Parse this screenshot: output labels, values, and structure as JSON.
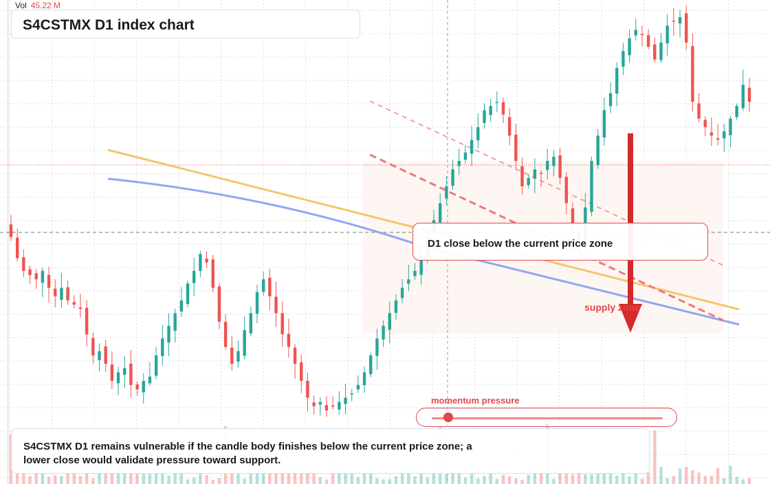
{
  "header": {
    "vol_label": "Vol",
    "vol_value": "45.22 M"
  },
  "title": "S4CSTMX D1 index chart",
  "callout": {
    "text": "D1 close below the current price zone"
  },
  "zone_label": "supply zone",
  "momentum": {
    "label": "momentum pressure",
    "value": 0.07
  },
  "footer": {
    "text": "S4CSTMX D1 remains vulnerable if the candle body finishes below the current price zone; a lower close would validate pressure toward support."
  },
  "colors": {
    "up": "#26a69a",
    "down": "#ef5350",
    "accent": "#e0474c",
    "orange_ma": "#f5c56b",
    "blue_ma": "#8fa8f0",
    "grid": "#dcdcdc"
  },
  "chart_data": {
    "type": "candlestick",
    "title": "S4CSTMX D1 index chart",
    "timeframe": "D1",
    "volume_last": "45.22 M",
    "x": "bar index (no axis labels visible)",
    "ylim": [
      0,
      100
    ],
    "current_price_level": 78.5,
    "crosshair_level": 64.5,
    "supply_zone": [
      44,
      85
    ],
    "candles_approx_close": [
      48,
      43,
      40,
      39,
      38,
      40,
      36,
      34,
      36,
      33,
      32,
      31,
      25,
      20,
      21,
      18,
      14,
      16,
      17,
      13,
      12,
      14,
      15,
      20,
      24,
      27,
      30,
      33,
      37,
      40,
      44,
      42,
      36,
      28,
      22,
      18,
      21,
      26,
      30,
      35,
      38,
      34,
      30,
      25,
      22,
      18,
      14,
      10,
      8,
      9,
      7,
      8,
      9,
      10,
      11,
      13,
      16,
      20,
      24,
      27,
      30,
      33,
      36,
      38,
      40,
      44,
      48,
      52,
      56,
      60,
      64,
      66,
      68,
      71,
      74,
      78,
      79,
      80,
      77,
      72,
      66,
      60,
      62,
      64,
      63,
      66,
      67,
      62,
      56,
      50,
      46,
      55,
      66,
      72,
      78,
      82,
      88,
      92,
      95,
      97,
      96,
      93,
      90,
      94,
      98,
      99,
      100,
      94,
      80,
      76,
      74,
      72,
      71,
      73,
      76,
      79,
      84,
      80
    ]
  }
}
